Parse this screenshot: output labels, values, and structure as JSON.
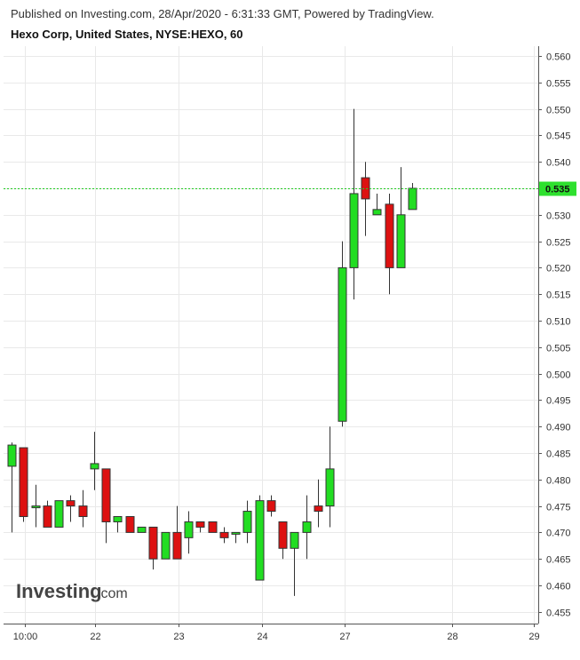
{
  "header": {
    "published": "Published on Investing.com, 28/Apr/2020 - 6:31:33 GMT, Powered by TradingView.",
    "title": "Hexo Corp, United States, NYSE:HEXO, 60"
  },
  "logo": {
    "brand": "Investing",
    "suffix": ".com"
  },
  "colors": {
    "up": "#22dd22",
    "down": "#dd1111",
    "last_price": "#22cc22",
    "grid": "#e9e9e9"
  },
  "chart_data": {
    "type": "candlestick",
    "title": "Hexo Corp, United States, NYSE:HEXO, 60",
    "x_ticks": [
      "10:00",
      "22",
      "23",
      "24",
      "27",
      "28",
      "29"
    ],
    "y_ticks": [
      "0.560",
      "0.555",
      "0.550",
      "0.545",
      "0.540",
      "0.535",
      "0.530",
      "0.525",
      "0.520",
      "0.515",
      "0.510",
      "0.505",
      "0.500",
      "0.495",
      "0.490",
      "0.485",
      "0.480",
      "0.475",
      "0.470",
      "0.465",
      "0.460",
      "0.455"
    ],
    "ylim": [
      0.453,
      0.562
    ],
    "last_price": "0.535",
    "grid": true,
    "candles": [
      {
        "day": "21",
        "o": 0.4825,
        "h": 0.487,
        "l": 0.47,
        "c": 0.4865
      },
      {
        "day": "21",
        "o": 0.486,
        "h": 0.486,
        "l": 0.472,
        "c": 0.473
      },
      {
        "day": "21",
        "o": 0.475,
        "h": 0.479,
        "l": 0.471,
        "c": 0.475
      },
      {
        "day": "21",
        "o": 0.475,
        "h": 0.476,
        "l": 0.471,
        "c": 0.471
      },
      {
        "day": "21",
        "o": 0.471,
        "h": 0.476,
        "l": 0.471,
        "c": 0.476
      },
      {
        "day": "21",
        "o": 0.476,
        "h": 0.477,
        "l": 0.472,
        "c": 0.475
      },
      {
        "day": "21",
        "o": 0.475,
        "h": 0.478,
        "l": 0.471,
        "c": 0.473
      },
      {
        "day": "22",
        "o": 0.482,
        "h": 0.489,
        "l": 0.478,
        "c": 0.483
      },
      {
        "day": "22",
        "o": 0.482,
        "h": 0.482,
        "l": 0.468,
        "c": 0.472
      },
      {
        "day": "22",
        "o": 0.472,
        "h": 0.473,
        "l": 0.47,
        "c": 0.473
      },
      {
        "day": "22",
        "o": 0.473,
        "h": 0.473,
        "l": 0.47,
        "c": 0.47
      },
      {
        "day": "22",
        "o": 0.47,
        "h": 0.471,
        "l": 0.47,
        "c": 0.471
      },
      {
        "day": "22",
        "o": 0.471,
        "h": 0.471,
        "l": 0.463,
        "c": 0.465
      },
      {
        "day": "22",
        "o": 0.465,
        "h": 0.47,
        "l": 0.465,
        "c": 0.47
      },
      {
        "day": "23",
        "o": 0.47,
        "h": 0.475,
        "l": 0.465,
        "c": 0.465
      },
      {
        "day": "23",
        "o": 0.469,
        "h": 0.474,
        "l": 0.466,
        "c": 0.472
      },
      {
        "day": "23",
        "o": 0.472,
        "h": 0.472,
        "l": 0.47,
        "c": 0.471
      },
      {
        "day": "23",
        "o": 0.472,
        "h": 0.472,
        "l": 0.47,
        "c": 0.47
      },
      {
        "day": "23",
        "o": 0.47,
        "h": 0.471,
        "l": 0.468,
        "c": 0.469
      },
      {
        "day": "23",
        "o": 0.47,
        "h": 0.47,
        "l": 0.468,
        "c": 0.47
      },
      {
        "day": "23",
        "o": 0.47,
        "h": 0.476,
        "l": 0.468,
        "c": 0.474
      },
      {
        "day": "24",
        "o": 0.461,
        "h": 0.477,
        "l": 0.461,
        "c": 0.476
      },
      {
        "day": "24",
        "o": 0.476,
        "h": 0.477,
        "l": 0.473,
        "c": 0.474
      },
      {
        "day": "24",
        "o": 0.472,
        "h": 0.472,
        "l": 0.465,
        "c": 0.467
      },
      {
        "day": "24",
        "o": 0.467,
        "h": 0.47,
        "l": 0.458,
        "c": 0.47
      },
      {
        "day": "24",
        "o": 0.47,
        "h": 0.477,
        "l": 0.465,
        "c": 0.472
      },
      {
        "day": "24",
        "o": 0.475,
        "h": 0.48,
        "l": 0.471,
        "c": 0.474
      },
      {
        "day": "24",
        "o": 0.475,
        "h": 0.49,
        "l": 0.471,
        "c": 0.482
      },
      {
        "day": "27",
        "o": 0.491,
        "h": 0.525,
        "l": 0.49,
        "c": 0.52
      },
      {
        "day": "27",
        "o": 0.52,
        "h": 0.55,
        "l": 0.514,
        "c": 0.534
      },
      {
        "day": "27",
        "o": 0.537,
        "h": 0.54,
        "l": 0.526,
        "c": 0.533
      },
      {
        "day": "27",
        "o": 0.53,
        "h": 0.534,
        "l": 0.53,
        "c": 0.531
      },
      {
        "day": "27",
        "o": 0.532,
        "h": 0.534,
        "l": 0.515,
        "c": 0.52
      },
      {
        "day": "27",
        "o": 0.52,
        "h": 0.539,
        "l": 0.52,
        "c": 0.53
      },
      {
        "day": "27",
        "o": 0.531,
        "h": 0.536,
        "l": 0.531,
        "c": 0.535
      }
    ]
  }
}
